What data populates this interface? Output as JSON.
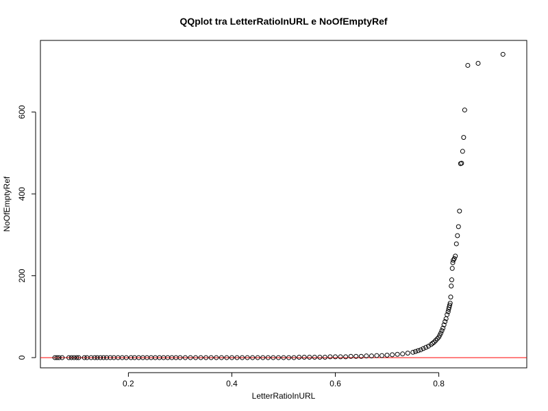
{
  "chart_data": {
    "type": "scatter",
    "title": "QQplot tra LetterRatioInURL e NoOfEmptyRef",
    "xlabel": "LetterRatioInURL",
    "ylabel": "NoOfEmptyRef",
    "xlim": [
      0.03,
      0.97
    ],
    "ylim": [
      -25,
      775
    ],
    "xticks": [
      0.2,
      0.4,
      0.6,
      0.8
    ],
    "xtick_labels": [
      "0.2",
      "0.4",
      "0.6",
      "0.8"
    ],
    "yticks": [
      0,
      200,
      400,
      600
    ],
    "ytick_labels": [
      "0",
      "200",
      "400",
      "600"
    ],
    "grid": false,
    "reference_line": {
      "orientation": "horizontal",
      "y": 0,
      "color": "#ff0000"
    },
    "marker": {
      "shape": "open-circle",
      "color": "#000000"
    },
    "x": [
      0.058,
      0.062,
      0.066,
      0.072,
      0.085,
      0.09,
      0.095,
      0.1,
      0.104,
      0.115,
      0.12,
      0.128,
      0.135,
      0.14,
      0.146,
      0.152,
      0.158,
      0.165,
      0.172,
      0.18,
      0.188,
      0.196,
      0.205,
      0.212,
      0.22,
      0.228,
      0.236,
      0.244,
      0.252,
      0.26,
      0.268,
      0.276,
      0.284,
      0.292,
      0.3,
      0.31,
      0.32,
      0.33,
      0.34,
      0.35,
      0.36,
      0.37,
      0.38,
      0.39,
      0.4,
      0.41,
      0.42,
      0.43,
      0.44,
      0.45,
      0.46,
      0.47,
      0.48,
      0.49,
      0.5,
      0.51,
      0.52,
      0.53,
      0.54,
      0.55,
      0.56,
      0.57,
      0.58,
      0.59,
      0.6,
      0.61,
      0.62,
      0.63,
      0.64,
      0.65,
      0.66,
      0.67,
      0.68,
      0.69,
      0.7,
      0.71,
      0.72,
      0.73,
      0.74,
      0.75,
      0.755,
      0.76,
      0.765,
      0.77,
      0.775,
      0.78,
      0.785,
      0.788,
      0.791,
      0.794,
      0.797,
      0.8,
      0.802,
      0.804,
      0.806,
      0.808,
      0.81,
      0.812,
      0.814,
      0.816,
      0.818,
      0.819,
      0.82,
      0.821,
      0.822,
      0.823,
      0.824,
      0.825,
      0.826,
      0.827,
      0.828,
      0.83,
      0.832,
      0.834,
      0.836,
      0.838,
      0.84,
      0.842,
      0.844,
      0.846,
      0.848,
      0.85,
      0.856,
      0.876,
      0.924
    ],
    "y": [
      0,
      0,
      0,
      0,
      0,
      0,
      0,
      0,
      0,
      0,
      0,
      0,
      0,
      0,
      0,
      0,
      0,
      0,
      0,
      0,
      0,
      0,
      0,
      0,
      0,
      0,
      0,
      0,
      0,
      0,
      0,
      0,
      0,
      0,
      0,
      0,
      0,
      0,
      0,
      0,
      0,
      0,
      0,
      0,
      0,
      0,
      0,
      0,
      0,
      0,
      0,
      0,
      0,
      0,
      0,
      0,
      0,
      1,
      1,
      1,
      1,
      1,
      1,
      2,
      2,
      2,
      2,
      3,
      3,
      3,
      4,
      4,
      5,
      5,
      6,
      7,
      8,
      9,
      11,
      13,
      15,
      17,
      19,
      22,
      25,
      28,
      32,
      35,
      38,
      42,
      46,
      50,
      55,
      60,
      66,
      72,
      80,
      88,
      95,
      105,
      112,
      118,
      123,
      128,
      133,
      148,
      175,
      190,
      218,
      232,
      238,
      242,
      248,
      278,
      298,
      320,
      358,
      474,
      475,
      504,
      538,
      605,
      714,
      719,
      741
    ]
  }
}
